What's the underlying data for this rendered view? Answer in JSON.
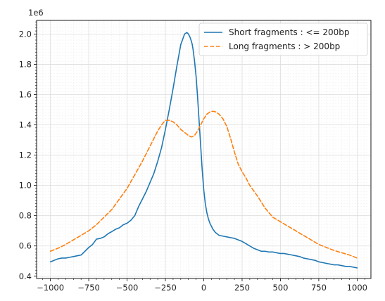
{
  "chart_data": {
    "type": "line",
    "title": "",
    "xlabel": "",
    "ylabel": "",
    "y_offset_label": "1e6",
    "xlim": [
      -1090,
      1090
    ],
    "ylim": [
      0.385,
      2.09
    ],
    "xticks": [
      -1000,
      -750,
      -500,
      -250,
      0,
      250,
      500,
      750,
      1000
    ],
    "xtick_labels": [
      "−1000",
      "−750",
      "−500",
      "−250",
      "0",
      "250",
      "500",
      "750",
      "1000"
    ],
    "yticks": [
      0.4,
      0.6,
      0.8,
      1.0,
      1.2,
      1.4,
      1.6,
      1.8,
      2.0
    ],
    "ytick_labels": [
      "0.4",
      "0.6",
      "0.8",
      "1.0",
      "1.2",
      "1.4",
      "1.6",
      "1.8",
      "2.0"
    ],
    "grid": true,
    "minor_grid": true,
    "legend_position": "top-right",
    "series": [
      {
        "name": "Short fragments : <= 200bp",
        "color": "#1f77b4",
        "style": "solid",
        "x": [
          -1000,
          -975,
          -950,
          -925,
          -900,
          -875,
          -850,
          -825,
          -800,
          -775,
          -750,
          -725,
          -700,
          -675,
          -650,
          -625,
          -600,
          -575,
          -550,
          -525,
          -500,
          -475,
          -450,
          -425,
          -400,
          -375,
          -350,
          -325,
          -300,
          -275,
          -250,
          -225,
          -200,
          -175,
          -150,
          -125,
          -110,
          -100,
          -90,
          -80,
          -75,
          -70,
          -60,
          -50,
          -40,
          -30,
          -20,
          -10,
          0,
          10,
          20,
          30,
          40,
          50,
          60,
          75,
          100,
          125,
          150,
          175,
          200,
          225,
          250,
          275,
          300,
          325,
          350,
          375,
          400,
          425,
          450,
          475,
          500,
          525,
          550,
          575,
          600,
          625,
          650,
          675,
          700,
          725,
          750,
          775,
          800,
          825,
          850,
          875,
          900,
          925,
          950,
          975,
          1000
        ],
        "y": [
          0.495,
          0.505,
          0.515,
          0.52,
          0.52,
          0.525,
          0.53,
          0.535,
          0.54,
          0.565,
          0.59,
          0.61,
          0.645,
          0.65,
          0.66,
          0.68,
          0.695,
          0.71,
          0.72,
          0.74,
          0.75,
          0.77,
          0.8,
          0.86,
          0.91,
          0.96,
          1.02,
          1.08,
          1.16,
          1.25,
          1.37,
          1.5,
          1.64,
          1.79,
          1.93,
          2.0,
          2.01,
          2.0,
          1.98,
          1.95,
          1.93,
          1.9,
          1.82,
          1.72,
          1.58,
          1.42,
          1.26,
          1.1,
          0.97,
          0.88,
          0.82,
          0.78,
          0.75,
          0.73,
          0.71,
          0.69,
          0.67,
          0.665,
          0.66,
          0.655,
          0.65,
          0.64,
          0.63,
          0.615,
          0.6,
          0.585,
          0.575,
          0.565,
          0.565,
          0.56,
          0.56,
          0.555,
          0.55,
          0.55,
          0.545,
          0.54,
          0.535,
          0.53,
          0.52,
          0.515,
          0.51,
          0.505,
          0.495,
          0.49,
          0.485,
          0.48,
          0.475,
          0.475,
          0.47,
          0.465,
          0.465,
          0.46,
          0.455
        ]
      },
      {
        "name": "Long fragments : > 200bp",
        "color": "#ff7f0e",
        "style": "dashed",
        "x": [
          -1000,
          -950,
          -900,
          -850,
          -800,
          -750,
          -700,
          -650,
          -600,
          -550,
          -500,
          -450,
          -400,
          -350,
          -300,
          -275,
          -250,
          -225,
          -200,
          -175,
          -150,
          -125,
          -100,
          -80,
          -60,
          -40,
          -20,
          0,
          20,
          40,
          60,
          80,
          100,
          125,
          150,
          175,
          200,
          225,
          250,
          275,
          300,
          350,
          400,
          450,
          500,
          550,
          600,
          650,
          700,
          750,
          800,
          850,
          900,
          950,
          1000
        ],
        "y": [
          0.565,
          0.585,
          0.61,
          0.64,
          0.67,
          0.7,
          0.74,
          0.79,
          0.84,
          0.91,
          0.98,
          1.07,
          1.16,
          1.26,
          1.36,
          1.4,
          1.43,
          1.43,
          1.42,
          1.4,
          1.37,
          1.35,
          1.33,
          1.32,
          1.33,
          1.36,
          1.4,
          1.44,
          1.47,
          1.485,
          1.49,
          1.485,
          1.47,
          1.44,
          1.39,
          1.31,
          1.22,
          1.14,
          1.09,
          1.05,
          1.0,
          0.93,
          0.85,
          0.79,
          0.76,
          0.73,
          0.7,
          0.67,
          0.64,
          0.61,
          0.59,
          0.57,
          0.555,
          0.54,
          0.52
        ]
      }
    ]
  }
}
